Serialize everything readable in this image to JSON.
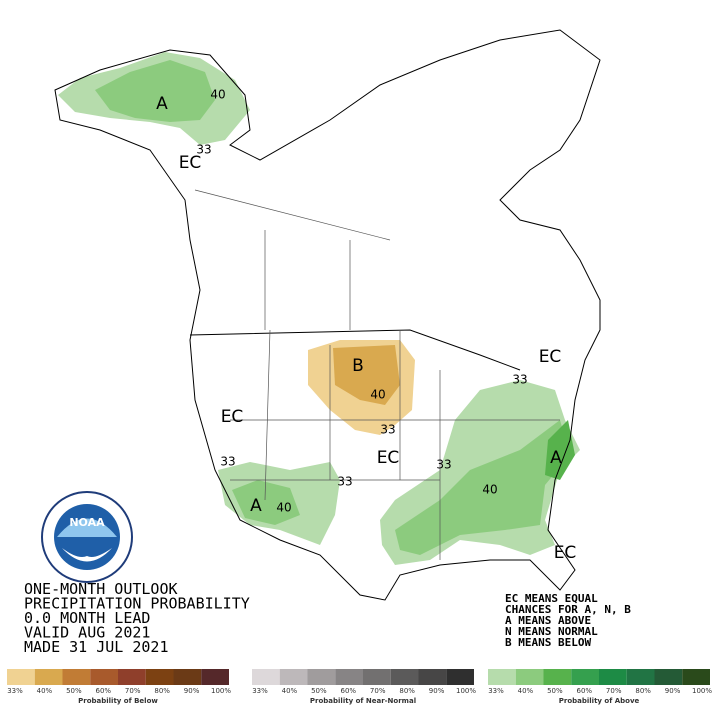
{
  "header": {
    "lines": [
      "ONE-MONTH OUTLOOK",
      "PRECIPITATION PROBABILITY",
      "0.0 MONTH LEAD",
      "VALID AUG 2021",
      "MADE 31 JUL 2021"
    ]
  },
  "notes": [
    "EC MEANS EQUAL",
    "CHANCES FOR A, N, B",
    "A MEANS ABOVE",
    "N MEANS NORMAL",
    "B MEANS BELOW"
  ],
  "logo": {
    "text": "NOAA"
  },
  "map": {
    "labels": [
      "A",
      "40",
      "33",
      "EC",
      "EC",
      "33",
      "B",
      "40",
      "33",
      "EC",
      "EC",
      "33",
      "33",
      "33",
      "A",
      "40",
      "40",
      "A",
      "EC"
    ]
  },
  "legend": {
    "ticks": [
      "33%",
      "40%",
      "50%",
      "60%",
      "70%",
      "80%",
      "90%",
      "100%"
    ],
    "scales": [
      {
        "caption": "Probability of Below",
        "colors": [
          "#f0d292",
          "#d9a94f",
          "#c17c35",
          "#a85a2c",
          "#8f3f2b",
          "#7c4112",
          "#6b3a16",
          "#55282a"
        ]
      },
      {
        "caption": "Probability of Near-Normal",
        "colors": [
          "#ddd8da",
          "#bdb8ba",
          "#a09c9d",
          "#878485",
          "#727070",
          "#5b5a5a",
          "#474646",
          "#2f2f2f"
        ]
      },
      {
        "caption": "Probability of Above",
        "colors": [
          "#b6dcac",
          "#8ccb7e",
          "#57b24c",
          "#35a04e",
          "#1d8b45",
          "#217444",
          "#245a36",
          "#2a4a1b"
        ]
      }
    ]
  }
}
